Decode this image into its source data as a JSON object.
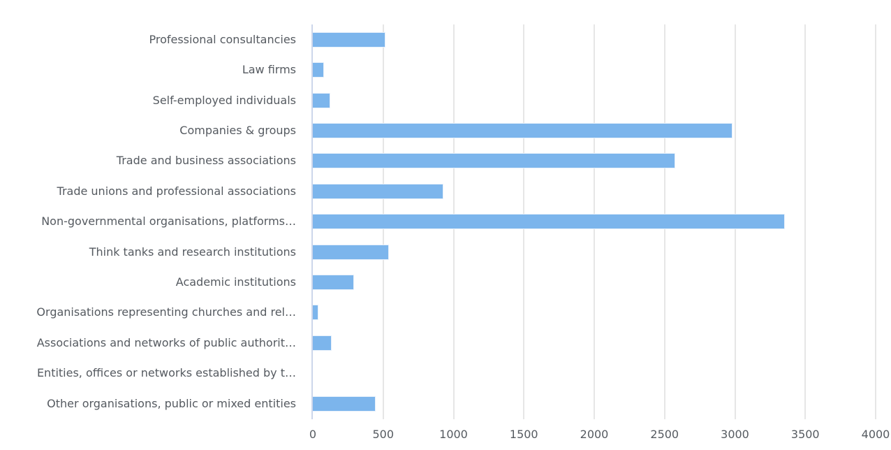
{
  "chart_data": {
    "type": "bar",
    "orientation": "horizontal",
    "title": "",
    "xlabel": "",
    "ylabel": "",
    "xlim": [
      0,
      4000
    ],
    "ticks": [
      "0",
      "500",
      "1000",
      "1500",
      "2000",
      "2500",
      "3000",
      "3500",
      "4000"
    ],
    "tick_values": [
      0,
      500,
      1000,
      1500,
      2000,
      2500,
      3000,
      3500,
      4000
    ],
    "grid": true,
    "legend": false,
    "bar_color": "#7cb5ec",
    "categories": [
      "Professional consultancies",
      "Law firms",
      "Self-employed individuals",
      "Companies & groups",
      "Trade and business associations",
      "Trade unions and professional associations",
      "Non-governmental organisations, platforms…",
      "Think tanks and research institutions",
      "Academic institutions",
      "Organisations representing churches and rel…",
      "Associations and networks of public authorit…",
      "Entities, offices or networks established by t…",
      "Other organisations, public or mixed entities"
    ],
    "values": [
      516,
      79,
      124,
      2983,
      2576,
      928,
      3355,
      541,
      293,
      40,
      134,
      0,
      447
    ]
  }
}
